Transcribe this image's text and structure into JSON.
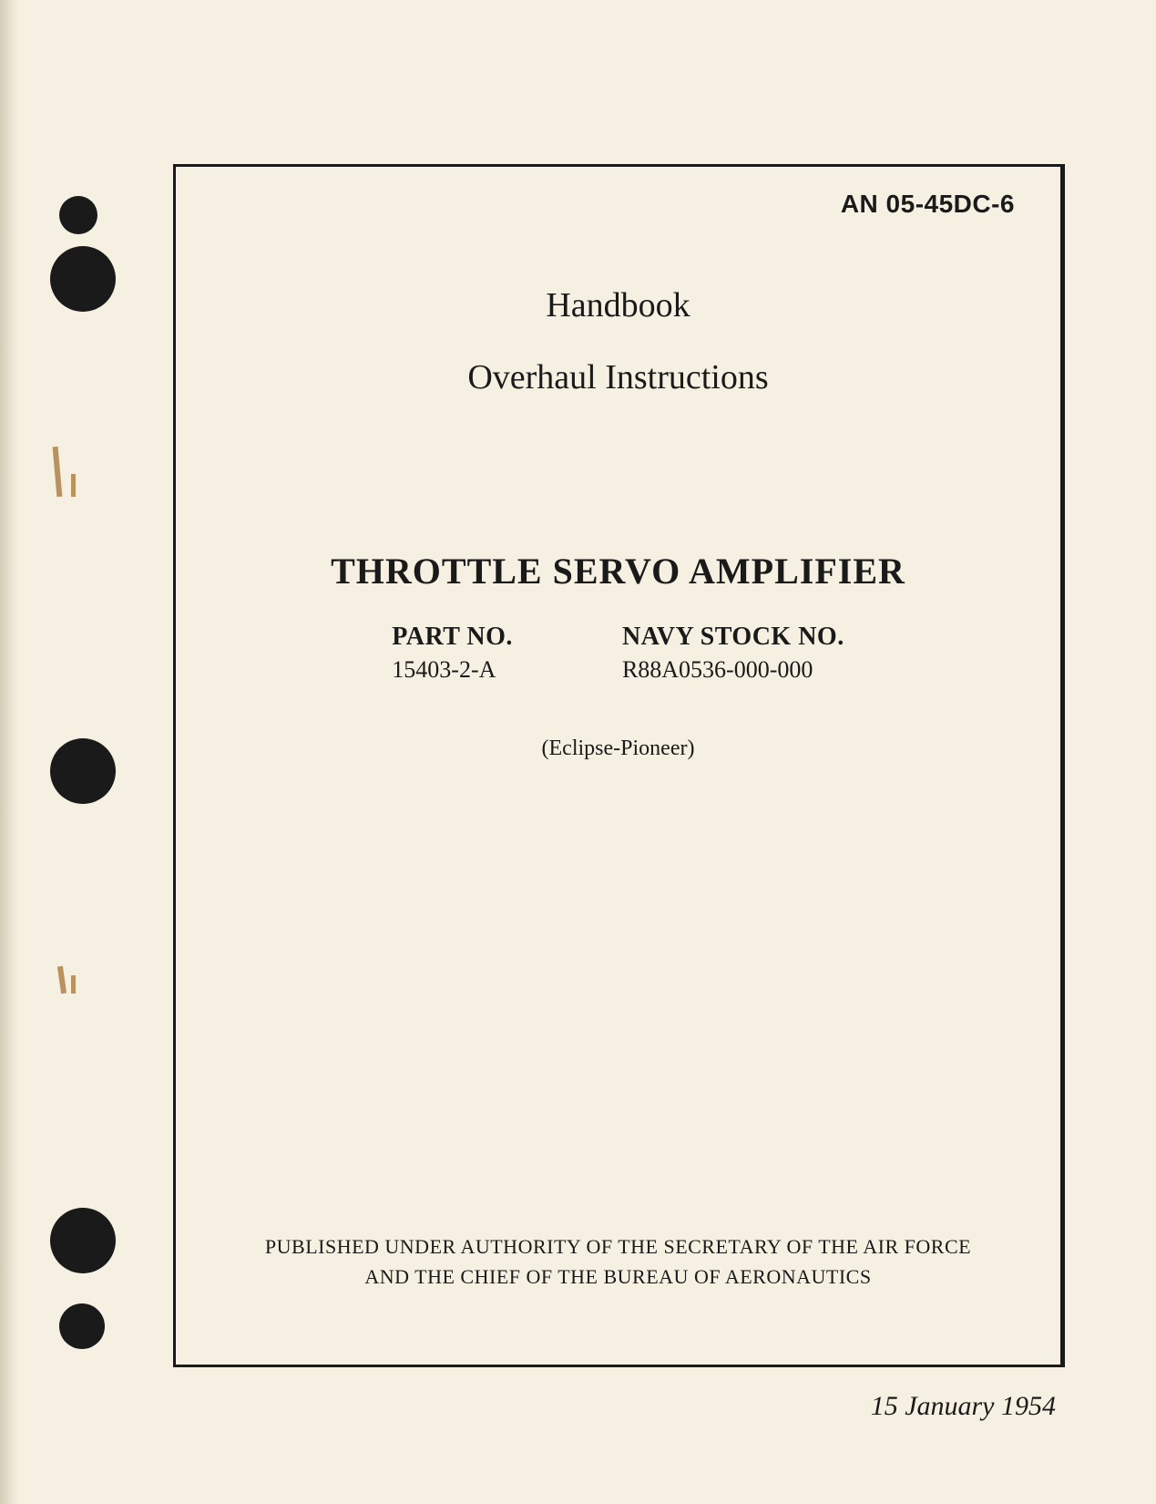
{
  "document_number": "AN 05-45DC-6",
  "title": {
    "line1": "Handbook",
    "line2": "Overhaul Instructions"
  },
  "main_title": "THROTTLE SERVO AMPLIFIER",
  "part_info": {
    "part_no": {
      "label": "PART NO.",
      "value": "15403-2-A"
    },
    "navy_stock": {
      "label": "NAVY STOCK NO.",
      "value": "R88A0536-000-000"
    }
  },
  "manufacturer": "(Eclipse-Pioneer)",
  "authority": {
    "line1": "PUBLISHED UNDER AUTHORITY OF THE SECRETARY OF THE AIR FORCE",
    "line2": "AND THE CHIEF OF THE BUREAU OF AERONAUTICS"
  },
  "date": "15 January 1954",
  "colors": {
    "paper": "#f5f0e1",
    "ink": "#1a1a1a",
    "stain": "#b8925f"
  },
  "typography": {
    "doc_number_size": 28,
    "title_size": 38,
    "main_title_size": 40,
    "label_size": 28,
    "value_size": 26,
    "manufacturer_size": 24,
    "authority_size": 22,
    "date_size": 30
  }
}
